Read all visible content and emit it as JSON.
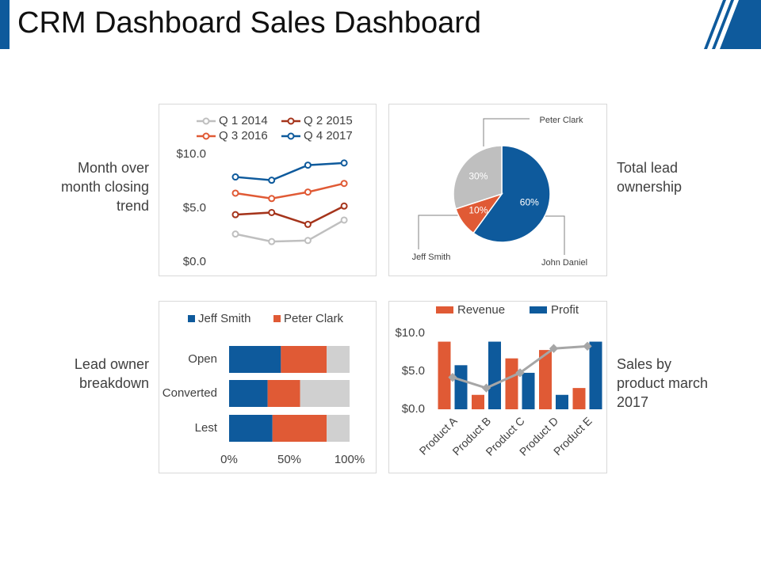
{
  "title": "CRM Dashboard Sales Dashboard",
  "chart_data": [
    {
      "type": "line",
      "caption": "Month over month closing trend",
      "categories": [
        null,
        null,
        null,
        null
      ],
      "series": [
        {
          "name": "Q 1  2014",
          "color": "#bfbfbf",
          "values": [
            2.6,
            1.9,
            2.0,
            3.9
          ]
        },
        {
          "name": "Q 2  2015",
          "color": "#a5341b",
          "values": [
            4.4,
            4.6,
            3.5,
            5.2
          ]
        },
        {
          "name": "Q 3  2016",
          "color": "#e05a35",
          "values": [
            6.4,
            5.9,
            6.5,
            7.3
          ]
        },
        {
          "name": "Q 4  2017",
          "color": "#0e5a9c",
          "values": [
            7.9,
            7.6,
            9.0,
            9.2
          ]
        }
      ],
      "ylim": [
        0,
        10
      ],
      "yticks": [
        {
          "value": 0,
          "label": "$0.0"
        },
        {
          "value": 5,
          "label": "$5.0"
        },
        {
          "value": 10,
          "label": "$10.0"
        }
      ]
    },
    {
      "type": "pie",
      "caption": "Total lead ownership",
      "categories": [
        "John Daniel",
        "Jeff Smith",
        "Peter Clark"
      ],
      "values": [
        60,
        10,
        30
      ],
      "value_labels": [
        "60%",
        "10%",
        "30%"
      ],
      "colors": [
        "#0e5a9c",
        "#e05a35",
        "#bfbfbf"
      ]
    },
    {
      "type": "stacked_hbar",
      "caption": "Lead owner breakdown",
      "categories": [
        "Open",
        "Converted",
        "Lest"
      ],
      "series": [
        {
          "name": "Jeff Smith",
          "color": "#0e5a9c",
          "values": [
            43,
            32,
            36
          ]
        },
        {
          "name": "Peter Clark",
          "color": "#e05a35",
          "values": [
            38,
            27,
            45
          ]
        },
        {
          "color": "#d0d0d0",
          "values": [
            19,
            41,
            19
          ]
        }
      ],
      "xlim": [
        0,
        100
      ],
      "xticks": [
        {
          "value": 0,
          "label": "0%"
        },
        {
          "value": 50,
          "label": "50%"
        },
        {
          "value": 100,
          "label": "100%"
        }
      ]
    },
    {
      "type": "bar_line",
      "caption": "Sales by product march 2017",
      "categories": [
        "Product A",
        "Product B",
        "Product C",
        "Product D",
        "Product E"
      ],
      "series": [
        {
          "name": "Revenue",
          "color": "#e05a35",
          "values": [
            8.9,
            1.9,
            6.7,
            7.8,
            2.8
          ]
        },
        {
          "name": "Profit",
          "color": "#0e5a9c",
          "values": [
            5.8,
            8.9,
            4.8,
            1.9,
            8.9
          ]
        },
        {
          "kind": "line",
          "color": "#a6a6a6",
          "values": [
            4.2,
            2.8,
            4.8,
            8.0,
            8.3
          ]
        }
      ],
      "ylim": [
        0,
        10
      ],
      "yticks": [
        {
          "value": 0,
          "label": "$0.0"
        },
        {
          "value": 5,
          "label": "$5.0"
        },
        {
          "value": 10,
          "label": "$10.0"
        }
      ]
    }
  ]
}
